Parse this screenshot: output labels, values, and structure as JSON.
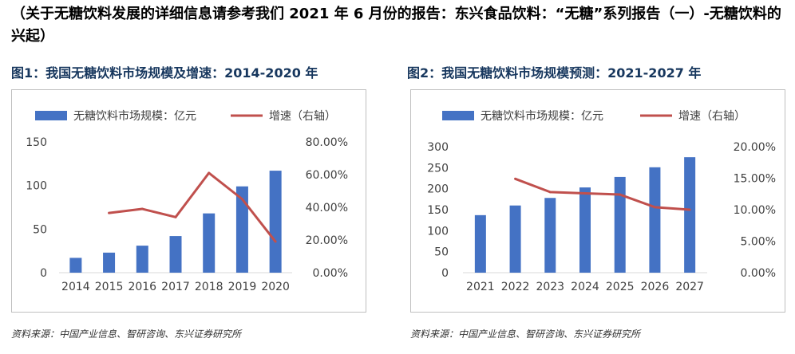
{
  "intro_text": "（关于无糖饮料发展的详细信息请参考我们 2021 年 6 月份的报告：东兴食品饮料：“无糖”系列报告（一）-无糖饮料的兴起）",
  "colors": {
    "bar": "#4472C4",
    "line": "#C0504D",
    "title": "#17375E",
    "frame": "#BFBFBF"
  },
  "chart_data": [
    {
      "type": "bar",
      "title": "图1：我国无糖饮料市场规模及增速：2014-2020 年",
      "categories": [
        "2014",
        "2015",
        "2016",
        "2017",
        "2018",
        "2019",
        "2020"
      ],
      "series": [
        {
          "name": "无糖饮料市场规模：亿元",
          "kind": "bar",
          "axis": "left",
          "values": [
            17,
            23,
            31,
            42,
            68,
            99,
            117
          ]
        },
        {
          "name": "增速（右轴）",
          "kind": "line",
          "axis": "right",
          "values": [
            null,
            36.5,
            39,
            34,
            61,
            45,
            19
          ]
        }
      ],
      "left_axis": {
        "min": 0,
        "max": 150,
        "ticks": [
          "0",
          "50",
          "100",
          "150"
        ],
        "tick_values": [
          0,
          50,
          100,
          150
        ]
      },
      "right_axis": {
        "min": 0,
        "max": 80,
        "ticks": [
          "0.00%",
          "20.00%",
          "40.00%",
          "60.00%",
          "80.00%"
        ],
        "tick_values": [
          0,
          20,
          40,
          60,
          80
        ]
      },
      "legend_position": "top",
      "source": "资料来源：中国产业信息、智研咨询、东兴证券研究所"
    },
    {
      "type": "bar",
      "title": "图2：我国无糖饮料市场规模预测：2021-2027 年",
      "categories": [
        "2021",
        "2022",
        "2023",
        "2024",
        "2025",
        "2026",
        "2027"
      ],
      "series": [
        {
          "name": "无糖饮料市场规模：亿元",
          "kind": "bar",
          "axis": "left",
          "values": [
            137,
            160,
            178,
            203,
            228,
            251,
            275
          ]
        },
        {
          "name": "增速（右轴）",
          "kind": "line",
          "axis": "right",
          "values": [
            null,
            14.9,
            12.8,
            12.6,
            12.4,
            10.4,
            10.0
          ]
        }
      ],
      "left_axis": {
        "min": 0,
        "max": 300,
        "ticks": [
          "0",
          "50",
          "100",
          "150",
          "200",
          "250",
          "300"
        ],
        "tick_values": [
          0,
          50,
          100,
          150,
          200,
          250,
          300
        ]
      },
      "right_axis": {
        "min": 0,
        "max": 20,
        "ticks": [
          "0.00%",
          "5.00%",
          "10.00%",
          "15.00%",
          "20.00%"
        ],
        "tick_values": [
          0,
          5,
          10,
          15,
          20
        ]
      },
      "legend_position": "top",
      "source": "资料来源：中国产业信息、智研咨询、东兴证券研究所"
    }
  ]
}
